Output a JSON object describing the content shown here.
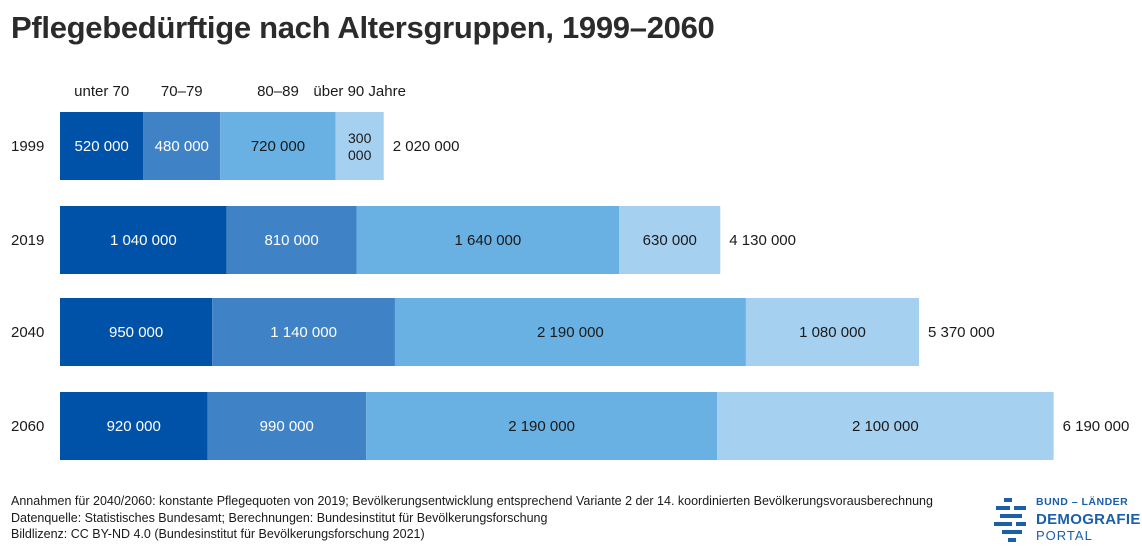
{
  "title": "Pflegebedürftige nach Altersgruppen, 1999–2060",
  "notes": [
    "Annahmen für 2040/2060: konstante Pflegequoten von 2019; Bevölkerungsentwicklung entsprechend Variante 2 der 14. koordinierten Bevölkerungsvorausberechnung",
    "Datenquelle: Statistisches Bundesamt; Berechnungen: Bundesinstitut für Bevölkerungsforschung",
    "Bildlizenz: CC BY-ND 4.0 (Bundesinstitut für Bevölkerungsforschung 2021)"
  ],
  "logo": {
    "line1": "BUND – LÄNDER",
    "line2": "DEMOGRAFIE",
    "line3": "PORTAL"
  },
  "chart_data": {
    "type": "bar",
    "orientation": "horizontal",
    "stacked": true,
    "categories": [
      "1999",
      "2019",
      "2040",
      "2060"
    ],
    "series": [
      {
        "name": "unter 70",
        "values": [
          520000,
          1040000,
          950000,
          920000
        ],
        "labels": [
          "520 000",
          "1 040 000",
          "950 000",
          "920 000"
        ],
        "color": "#0051a8",
        "text_color": "#ffffff"
      },
      {
        "name": "70–79",
        "values": [
          480000,
          810000,
          1140000,
          990000
        ],
        "labels": [
          "480 000",
          "810 000",
          "1 140 000",
          "990 000"
        ],
        "color": "#3f82c6",
        "text_color": "#ffffff"
      },
      {
        "name": "80–89",
        "values": [
          720000,
          1640000,
          2190000,
          2190000
        ],
        "labels": [
          "720 000",
          "1 640 000",
          "2 190 000",
          "2 190 000"
        ],
        "color": "#69b0e3",
        "text_color": "#1a1a1a"
      },
      {
        "name": "über 90 Jahre",
        "values": [
          300000,
          630000,
          1080000,
          2100000
        ],
        "labels": [
          "300 000",
          "630 000",
          "1 080 000",
          "2 100 000"
        ],
        "color": "#a5d0f0",
        "text_color": "#1a1a1a"
      }
    ],
    "totals": [
      2020000,
      4130000,
      5370000,
      6190000
    ],
    "total_labels": [
      "2 020 000",
      "4 130 000",
      "5 370 000",
      "6 190 000"
    ],
    "xlim": [
      0,
      6190000
    ],
    "axis_visible": false,
    "grid": false,
    "legend": "top"
  }
}
